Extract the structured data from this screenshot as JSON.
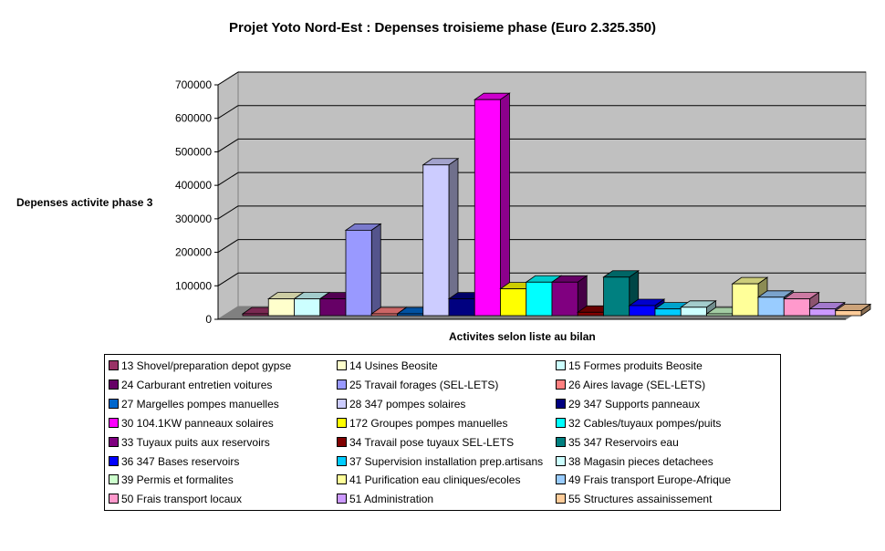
{
  "chart_data": {
    "type": "bar",
    "style": "3d-column",
    "title": "Projet Yoto Nord-Est : Depenses troisieme phase (Euro 2.325.350)",
    "xlabel": "Activites selon liste au bilan",
    "ylabel": "Depenses activite phase 3",
    "ylim": [
      0,
      700000
    ],
    "yticks": [
      "0",
      "100000",
      "200000",
      "300000",
      "400000",
      "500000",
      "600000",
      "700000"
    ],
    "grid": true,
    "legend_position": "bottom",
    "series": [
      {
        "name": "13 Shovel/preparation depot gypse",
        "value": 5000,
        "color": "#993366"
      },
      {
        "name": "14 Usines Beosite",
        "value": 50000,
        "color": "#FFFFCC"
      },
      {
        "name": "15 Formes produits Beosite",
        "value": 50000,
        "color": "#CCFFFF"
      },
      {
        "name": "24 Carburant entretien voitures",
        "value": 50000,
        "color": "#660066"
      },
      {
        "name": "25 Travail forages (SEL-LETS)",
        "value": 255000,
        "color": "#9999FF"
      },
      {
        "name": "26 Aires lavage (SEL-LETS)",
        "value": 5000,
        "color": "#FF8080"
      },
      {
        "name": "27 Margelles pompes manuelles",
        "value": 5000,
        "color": "#0066CC"
      },
      {
        "name": "28 347 pompes solaires",
        "value": 450000,
        "color": "#CCCCFF"
      },
      {
        "name": "29 347 Supports panneaux",
        "value": 50000,
        "color": "#000080"
      },
      {
        "name": "30 104.1KW panneaux solaires",
        "value": 645000,
        "color": "#FF00FF"
      },
      {
        "name": "172 Groupes pompes manuelles",
        "value": 80000,
        "color": "#FFFF00"
      },
      {
        "name": "32 Cables/tuyaux pompes/puits",
        "value": 100000,
        "color": "#00FFFF"
      },
      {
        "name": "33 Tuyaux puits aux reservoirs",
        "value": 100000,
        "color": "#800080"
      },
      {
        "name": "34 Travail pose tuyaux SEL-LETS",
        "value": 10000,
        "color": "#800000"
      },
      {
        "name": "35 347 Reservoirs eau",
        "value": 115000,
        "color": "#008080"
      },
      {
        "name": "36 347 Bases reservoirs",
        "value": 30000,
        "color": "#0000FF"
      },
      {
        "name": "37 Supervision installation prep.artisans",
        "value": 20000,
        "color": "#00CCFF"
      },
      {
        "name": "38 Magasin pieces detachees",
        "value": 25000,
        "color": "#CCFFFF"
      },
      {
        "name": "39 Permis et formalites",
        "value": 5000,
        "color": "#CCFFCC"
      },
      {
        "name": "41 Purification eau cliniques/ecoles",
        "value": 95000,
        "color": "#FFFF99"
      },
      {
        "name": "49 Frais transport Europe-Afrique",
        "value": 55000,
        "color": "#99CCFF"
      },
      {
        "name": "50 Frais transport locaux",
        "value": 50000,
        "color": "#FF99CC"
      },
      {
        "name": "51 Administration",
        "value": 20000,
        "color": "#CC99FF"
      },
      {
        "name": "55 Structures assainissement",
        "value": 15000,
        "color": "#FFCC99"
      }
    ]
  }
}
